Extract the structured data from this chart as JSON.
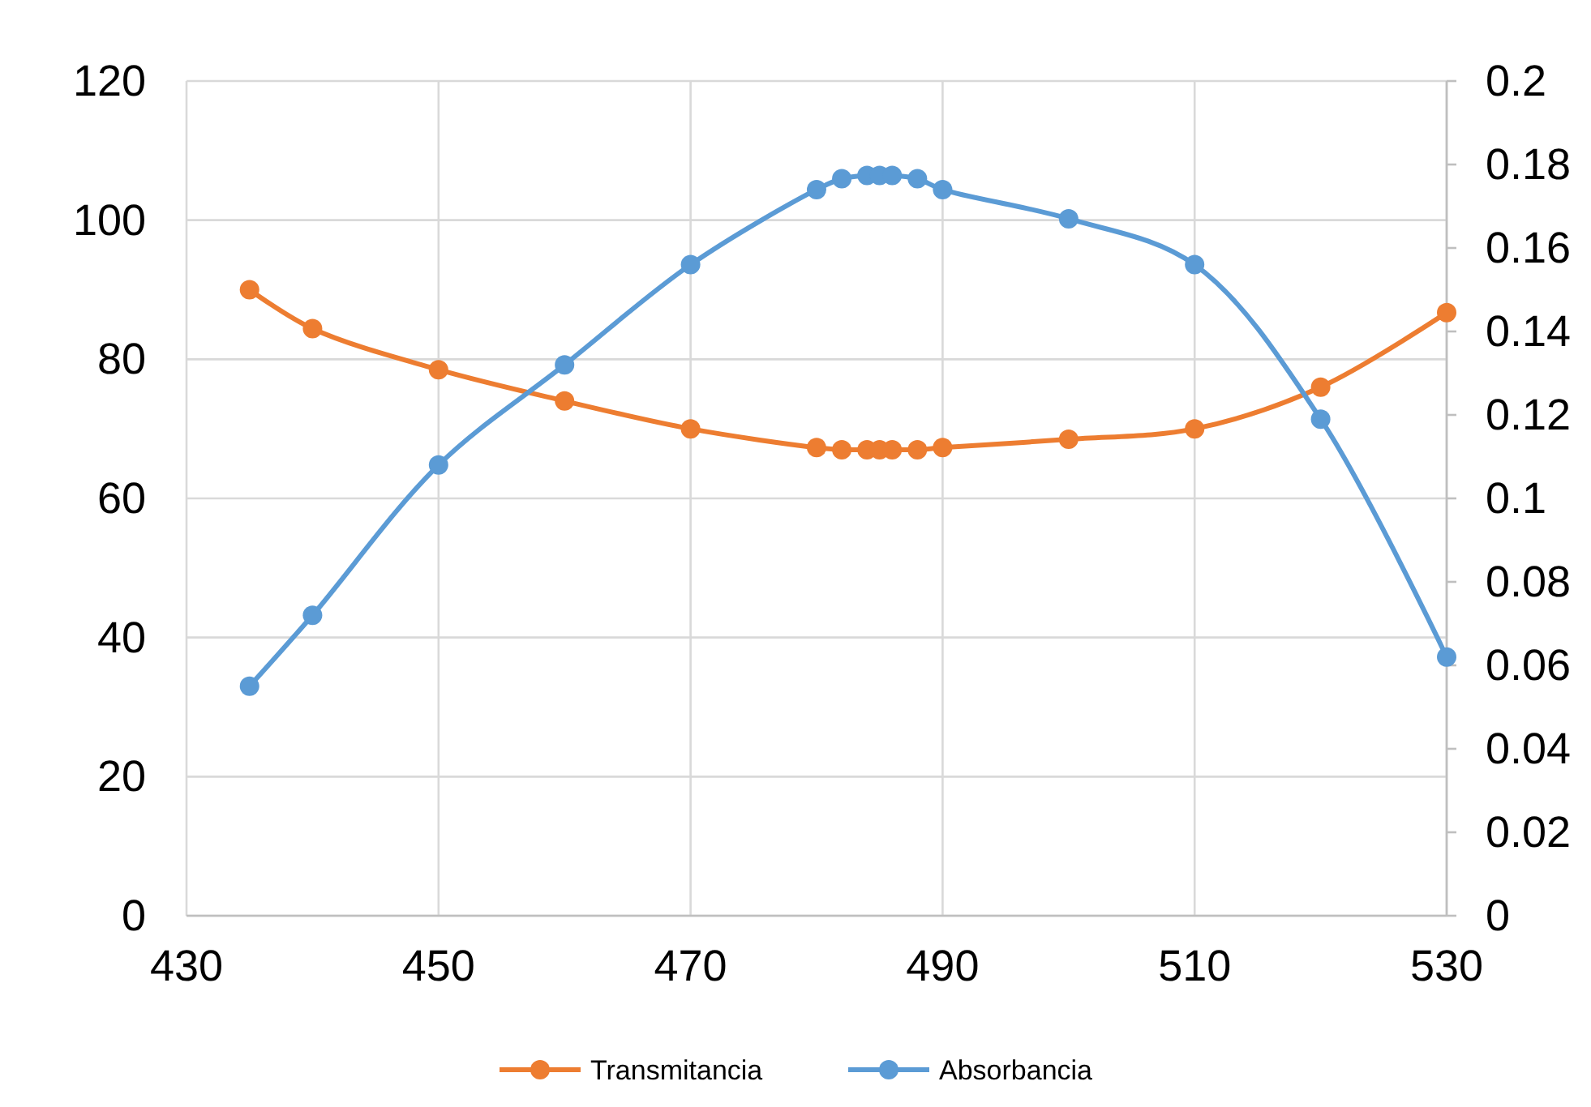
{
  "chart_data": {
    "type": "line",
    "x": [
      435,
      440,
      450,
      460,
      470,
      480,
      482,
      484,
      485,
      486,
      488,
      490,
      500,
      510,
      520,
      530
    ],
    "series": [
      {
        "name": "Transmitancia",
        "color": "#ed7d31",
        "values": [
          90,
          84.4,
          78.5,
          74,
          70,
          67.3,
          67,
          67,
          67,
          67,
          67,
          67.3,
          68.5,
          70,
          76,
          86.7
        ]
      },
      {
        "name": "Absorbancia",
        "color": "#5b9bd5",
        "axis": "y2",
        "values": [
          0.055,
          0.072,
          0.108,
          0.132,
          0.156,
          0.174,
          0.1766,
          0.1774,
          0.1774,
          0.1774,
          0.1766,
          0.174,
          0.167,
          0.156,
          0.119,
          0.062
        ]
      }
    ],
    "xlim": [
      430,
      530
    ],
    "xticks": [
      430,
      450,
      470,
      490,
      510,
      530
    ],
    "ylim": [
      0,
      120
    ],
    "yticks": [
      0,
      20,
      40,
      60,
      80,
      100,
      120
    ],
    "y2lim": [
      0,
      0.2
    ],
    "y2ticks": [
      0,
      0.02,
      0.04,
      0.06,
      0.08,
      0.1,
      0.12,
      0.14,
      0.16,
      0.18,
      0.2
    ],
    "grid": true,
    "legend": "bottom",
    "marker": "circle",
    "line_style": "solid"
  }
}
